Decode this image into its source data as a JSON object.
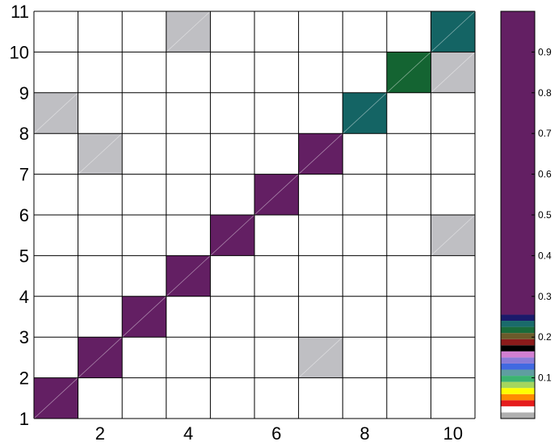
{
  "chart_data": {
    "type": "heatmap",
    "title": "",
    "xlabel": "",
    "ylabel": "",
    "xlim": [
      1,
      11
    ],
    "ylim": [
      1,
      11
    ],
    "x_ticks": [
      "2",
      "4",
      "6",
      "8",
      "10"
    ],
    "y_ticks": [
      "1",
      "2",
      "3",
      "4",
      "5",
      "6",
      "7",
      "8",
      "9",
      "10",
      "11"
    ],
    "colorbar": {
      "ticks": [
        "0.1",
        "0.2",
        "0.3",
        "0.4",
        "0.5",
        "0.6",
        "0.7",
        "0.8",
        "0.9"
      ],
      "range": [
        0,
        1
      ],
      "palette": [
        {
          "from": 0.0,
          "to": 0.015,
          "color": "#b0b0b0"
        },
        {
          "from": 0.015,
          "to": 0.03,
          "color": "#ffffff"
        },
        {
          "from": 0.03,
          "to": 0.045,
          "color": "#e51b1b"
        },
        {
          "from": 0.045,
          "to": 0.06,
          "color": "#ff8c00"
        },
        {
          "from": 0.06,
          "to": 0.075,
          "color": "#ffff00"
        },
        {
          "from": 0.075,
          "to": 0.09,
          "color": "#a4d65e"
        },
        {
          "from": 0.09,
          "to": 0.105,
          "color": "#3cb371"
        },
        {
          "from": 0.105,
          "to": 0.12,
          "color": "#5f9ea0"
        },
        {
          "from": 0.12,
          "to": 0.135,
          "color": "#4169e1"
        },
        {
          "from": 0.135,
          "to": 0.15,
          "color": "#8a7bd8"
        },
        {
          "from": 0.15,
          "to": 0.165,
          "color": "#d17fd1"
        },
        {
          "from": 0.165,
          "to": 0.18,
          "color": "#000000"
        },
        {
          "from": 0.18,
          "to": 0.195,
          "color": "#8b1a1a"
        },
        {
          "from": 0.195,
          "to": 0.21,
          "color": "#6b5b2a"
        },
        {
          "from": 0.21,
          "to": 0.225,
          "color": "#1a6b3a"
        },
        {
          "from": 0.225,
          "to": 0.24,
          "color": "#1a6b6b"
        },
        {
          "from": 0.24,
          "to": 0.255,
          "color": "#1a1a6b"
        },
        {
          "from": 0.255,
          "to": 1.0,
          "color": "#631f63"
        }
      ]
    },
    "cells": [
      {
        "col": 1,
        "row": 1,
        "color": "#631f63"
      },
      {
        "col": 2,
        "row": 2,
        "color": "#631f63"
      },
      {
        "col": 3,
        "row": 3,
        "color": "#631f63"
      },
      {
        "col": 4,
        "row": 4,
        "color": "#631f63"
      },
      {
        "col": 5,
        "row": 5,
        "color": "#631f63"
      },
      {
        "col": 6,
        "row": 6,
        "color": "#631f63"
      },
      {
        "col": 7,
        "row": 7,
        "color": "#631f63"
      },
      {
        "col": 8,
        "row": 8,
        "color": "#146464"
      },
      {
        "col": 9,
        "row": 9,
        "color": "#146432"
      },
      {
        "col": 10,
        "row": 10,
        "color": "#146464"
      },
      {
        "col": 4,
        "row": 10,
        "color": "#bfbfc3"
      },
      {
        "col": 10,
        "row": 9,
        "color": "#bfbfc3"
      },
      {
        "col": 1,
        "row": 8,
        "color": "#bfbfc3"
      },
      {
        "col": 2,
        "row": 7,
        "color": "#bfbfc3"
      },
      {
        "col": 10,
        "row": 5,
        "color": "#bfbfc3"
      },
      {
        "col": 7,
        "row": 2,
        "color": "#bfbfc3"
      }
    ]
  }
}
